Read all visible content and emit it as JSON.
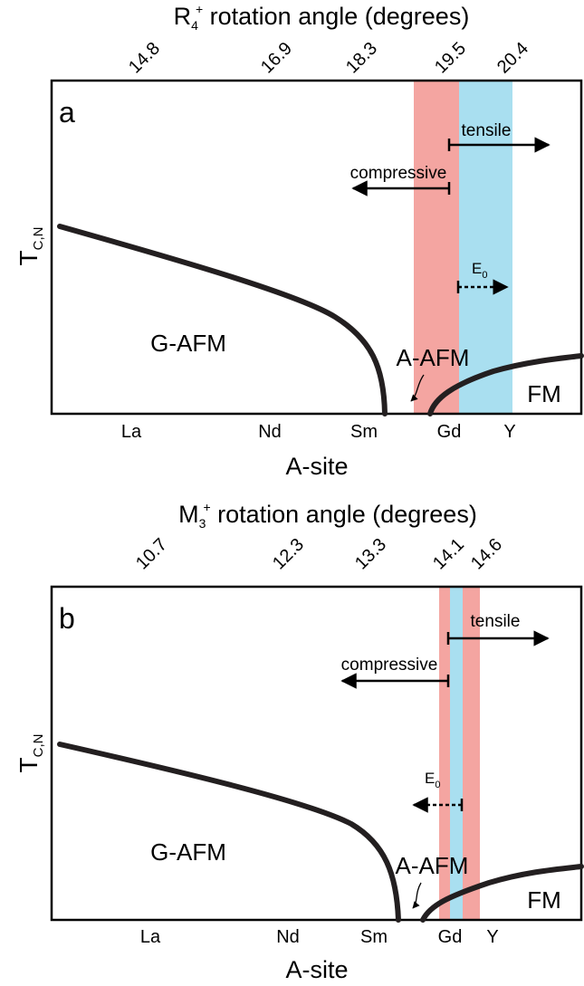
{
  "panel_a": {
    "top_title": "R",
    "top_title_sub": "4",
    "top_title_sup": "+",
    "top_title_rest": " rotation angle (degrees)",
    "top_ticks": [
      "14.8",
      "16.9",
      "18.3",
      "19.5",
      "20.4"
    ],
    "panel_label": "a",
    "y_label": "T",
    "y_label_sub": "C,N",
    "x_label": "A-site",
    "bottom_ticks": [
      "La",
      "Nd",
      "Sm",
      "Gd",
      "Y"
    ],
    "regions": {
      "g_afm": "G-AFM",
      "a_afm": "A-AFM",
      "fm": "FM"
    },
    "arrows": {
      "tensile": "tensile",
      "compressive": "compressive",
      "e0": "E",
      "e0_sub": "0"
    },
    "colors": {
      "red_band": "#f4a5a1",
      "blue_band": "#a9dff0",
      "curve": "#231f20"
    }
  },
  "panel_b": {
    "top_title": "M",
    "top_title_sub": "3",
    "top_title_sup": "+",
    "top_title_rest": " rotation angle (degrees)",
    "top_ticks": [
      "10.7",
      "12.3",
      "13.3",
      "14.1",
      "14.6"
    ],
    "panel_label": "b",
    "y_label": "T",
    "y_label_sub": "C,N",
    "x_label": "A-site",
    "bottom_ticks": [
      "La",
      "Nd",
      "Sm",
      "Gd",
      "Y"
    ],
    "regions": {
      "g_afm": "G-AFM",
      "a_afm": "A-AFM",
      "fm": "FM"
    },
    "arrows": {
      "tensile": "tensile",
      "compressive": "compressive",
      "e0": "E",
      "e0_sub": "0"
    },
    "colors": {
      "red_band": "#f4a5a1",
      "blue_band": "#a9dff0",
      "curve": "#231f20"
    }
  }
}
